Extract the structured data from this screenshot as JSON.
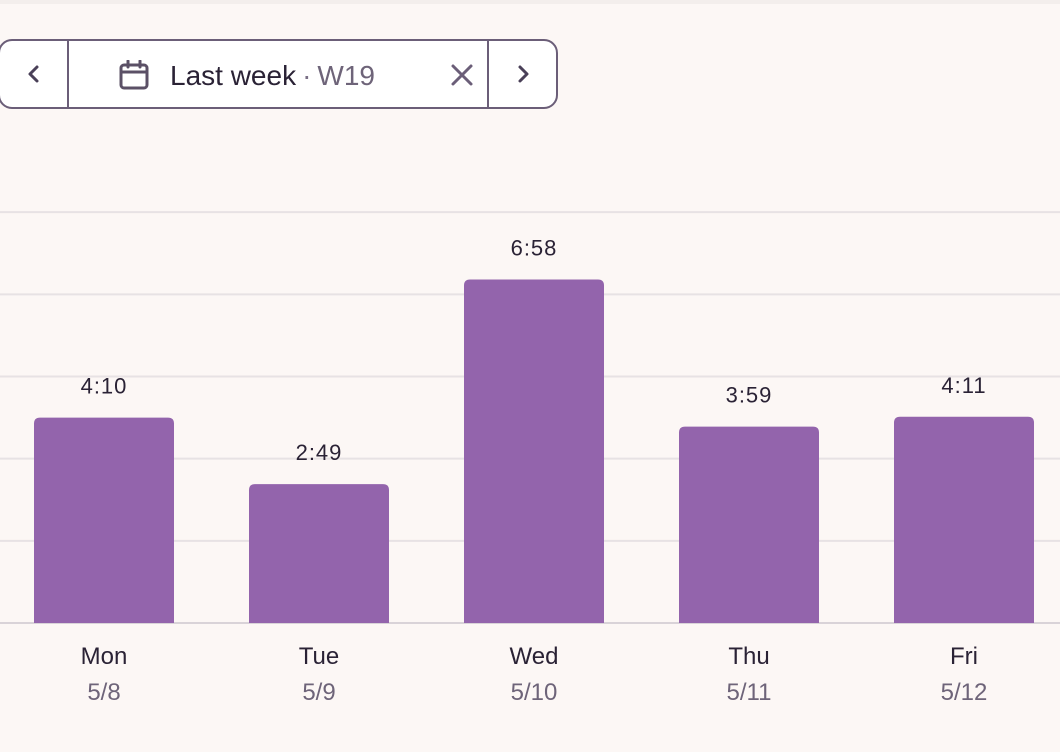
{
  "range_picker": {
    "label": "Last week",
    "separator": "·",
    "week": "W19",
    "prev_icon": "chevron-left-icon",
    "next_icon": "chevron-right-icon",
    "calendar_icon": "calendar-icon",
    "clear_icon": "close-icon"
  },
  "colors": {
    "bar": "#9364ac",
    "background": "#fcf7f5",
    "border": "#6b5e78",
    "text": "#2a2235",
    "muted_text": "#6e6479",
    "grid": "#e7e2e4"
  },
  "chart_data": {
    "type": "bar",
    "title": "",
    "xlabel": "",
    "ylabel": "",
    "grid": true,
    "categories": [
      "Mon",
      "Tue",
      "Wed",
      "Thu",
      "Fri"
    ],
    "dates": [
      "5/8",
      "5/9",
      "5/10",
      "5/11",
      "5/12"
    ],
    "values": [
      250,
      169,
      418,
      239,
      251
    ],
    "value_labels": [
      "4:10",
      "2:49",
      "6:58",
      "3:59",
      "4:11"
    ],
    "value_unit": "minutes",
    "ylim": [
      0,
      600
    ]
  }
}
